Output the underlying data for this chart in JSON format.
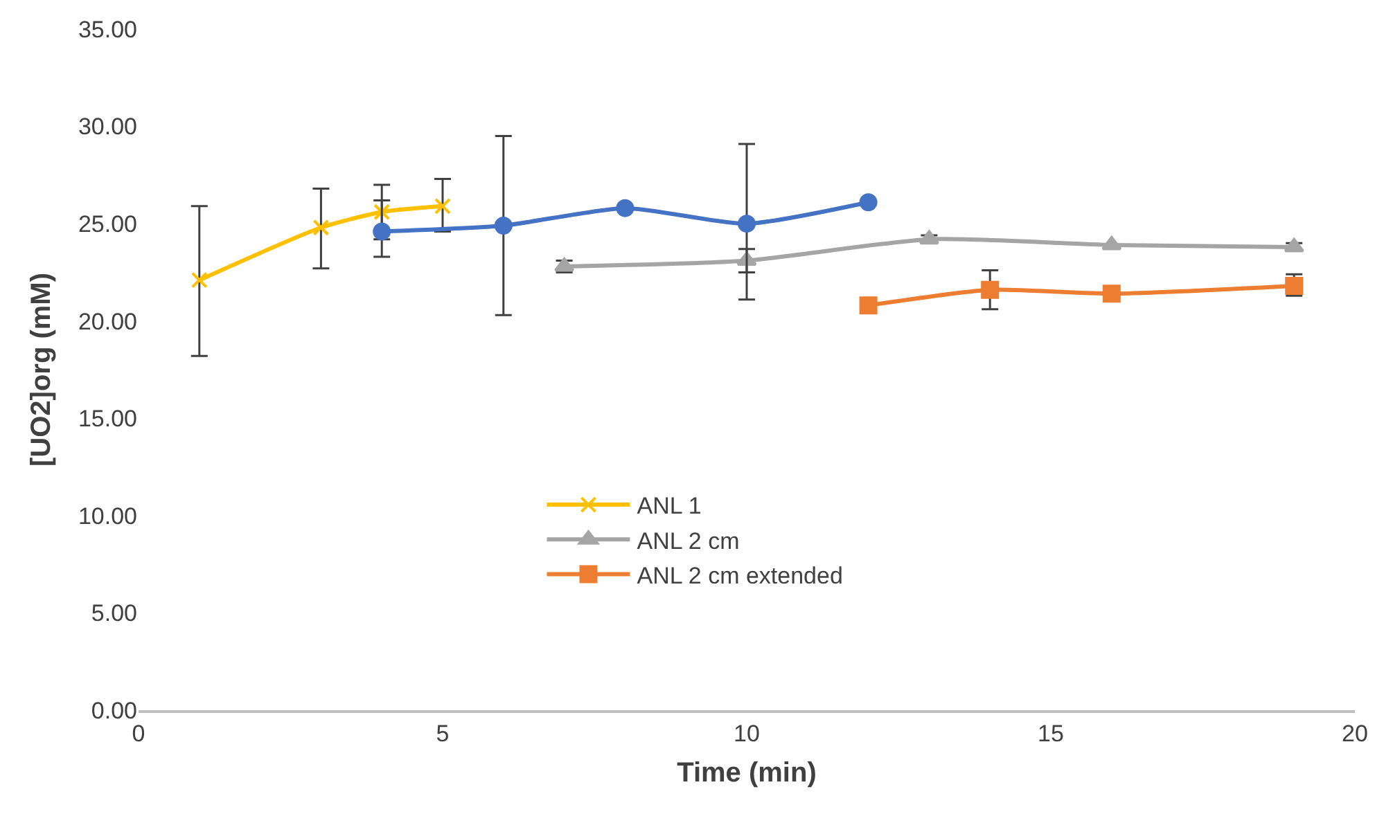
{
  "chart_data": {
    "type": "line",
    "xlabel": "Time (min)",
    "ylabel": "[UO2]org (mM)",
    "xlim": [
      0,
      20
    ],
    "xticks": [
      0,
      5,
      10,
      15,
      20
    ],
    "ylim": [
      0,
      35
    ],
    "yticks": [
      {
        "value": 0,
        "label": "0.00"
      },
      {
        "value": 5,
        "label": "5.00"
      },
      {
        "value": 10,
        "label": "10.00"
      },
      {
        "value": 15,
        "label": "15.00"
      },
      {
        "value": 20,
        "label": "20.00"
      },
      {
        "value": 25,
        "label": "25.00"
      },
      {
        "value": 30,
        "label": "30.00"
      },
      {
        "value": 35,
        "label": "35.00"
      }
    ],
    "grid": false,
    "legend": "center",
    "series": [
      {
        "name": "ANL 1",
        "color": "#ffc000",
        "marker": "cross",
        "x": [
          1,
          3,
          4,
          5
        ],
        "values": [
          22.1,
          24.8,
          25.6,
          25.9
        ],
        "errors": [
          [
            18.2,
            25.9
          ],
          [
            22.7,
            26.8
          ],
          [
            24.2,
            27.0
          ],
          [
            24.6,
            27.3
          ]
        ]
      },
      {
        "name": "ANL 2 cm",
        "color": "#a5a5a5",
        "marker": "triangle",
        "x": [
          7,
          10,
          13,
          16,
          19
        ],
        "values": [
          22.8,
          23.1,
          24.2,
          23.9,
          23.8
        ],
        "errors": [
          [
            22.5,
            23.1
          ],
          [
            22.5,
            23.7
          ],
          [
            24.0,
            24.4
          ],
          null,
          [
            23.6,
            24.0
          ]
        ]
      },
      {
        "name": "ANL 2 cm extended",
        "color": "#ed7d31",
        "marker": "square",
        "x": [
          12,
          14,
          16,
          19
        ],
        "values": [
          20.8,
          21.6,
          21.4,
          21.8
        ],
        "errors": [
          null,
          [
            20.6,
            22.6
          ],
          null,
          [
            21.3,
            22.4
          ]
        ]
      },
      {
        "color": "#4472c4",
        "marker": "circle",
        "x": [
          4,
          6,
          8,
          10,
          12
        ],
        "values": [
          24.6,
          24.9,
          25.8,
          25.0,
          26.1
        ],
        "errors": [
          [
            23.3,
            26.2
          ],
          [
            20.3,
            29.5
          ],
          null,
          [
            21.1,
            29.1
          ],
          null
        ]
      }
    ]
  }
}
